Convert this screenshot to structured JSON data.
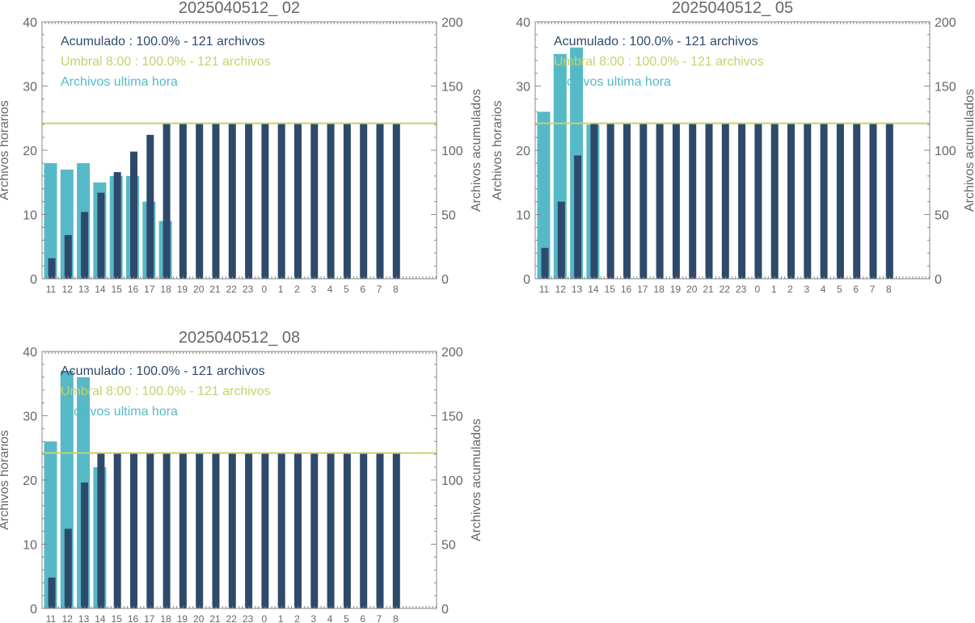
{
  "colors": {
    "accumulated": "#2e4a6b",
    "hourly": "#56b9c7",
    "threshold": "#c8d16a",
    "axis": "#888888",
    "text": "#666666"
  },
  "chart_data": [
    {
      "type": "bar",
      "title": "2025040512_ 02",
      "ylabel": "Archivos horarios",
      "ylabel_right": "Archivos acumulados",
      "ylim": [
        0,
        40
      ],
      "ylim_right": [
        0,
        200
      ],
      "yticks": [
        "0",
        "10",
        "20",
        "30",
        "40"
      ],
      "yticks_right": [
        "0",
        "50",
        "100",
        "150",
        "200"
      ],
      "categories": [
        "11",
        "12",
        "13",
        "14",
        "15",
        "16",
        "17",
        "18",
        "19",
        "20",
        "21",
        "22",
        "23",
        "0",
        "1",
        "2",
        "3",
        "4",
        "5",
        "6",
        "7",
        "8"
      ],
      "threshold": 121,
      "legend": [
        "Acumulado : 100.0% - 121 archivos",
        "Umbral 8:00 : 100.0% - 121 archivos",
        "Archivos ultima hora"
      ],
      "series": [
        {
          "name": "Archivos ultima hora",
          "axis": "left",
          "values": [
            18,
            17,
            18,
            15,
            16,
            16,
            12,
            9,
            null,
            null,
            null,
            null,
            null,
            null,
            null,
            null,
            null,
            null,
            null,
            null,
            null,
            null
          ]
        },
        {
          "name": "Acumulado",
          "axis": "right",
          "values": [
            16,
            34,
            52,
            67,
            83,
            99,
            112,
            121,
            121,
            121,
            121,
            121,
            121,
            121,
            121,
            121,
            121,
            121,
            121,
            121,
            121,
            121
          ]
        }
      ]
    },
    {
      "type": "bar",
      "title": "2025040512_ 05",
      "ylabel": "Archivos horarios",
      "ylabel_right": "Archivos acumulados",
      "ylim": [
        0,
        40
      ],
      "ylim_right": [
        0,
        200
      ],
      "yticks": [
        "0",
        "10",
        "20",
        "30",
        "40"
      ],
      "yticks_right": [
        "0",
        "50",
        "100",
        "150",
        "200"
      ],
      "categories": [
        "11",
        "12",
        "13",
        "14",
        "15",
        "16",
        "17",
        "18",
        "19",
        "20",
        "21",
        "22",
        "23",
        "0",
        "1",
        "2",
        "3",
        "4",
        "5",
        "6",
        "7",
        "8"
      ],
      "threshold": 121,
      "legend": [
        "Acumulado : 100.0% - 121 archivos",
        "Umbral 8:00 : 100.0% - 121 archivos",
        "Archivos ultima hora"
      ],
      "series": [
        {
          "name": "Archivos ultima hora",
          "axis": "left",
          "values": [
            26,
            35,
            36,
            24,
            null,
            null,
            null,
            null,
            null,
            null,
            null,
            null,
            null,
            null,
            null,
            null,
            null,
            null,
            null,
            null,
            null,
            null
          ]
        },
        {
          "name": "Acumulado",
          "axis": "right",
          "values": [
            24,
            60,
            96,
            121,
            121,
            121,
            121,
            121,
            121,
            121,
            121,
            121,
            121,
            121,
            121,
            121,
            121,
            121,
            121,
            121,
            121,
            121
          ]
        }
      ]
    },
    {
      "type": "bar",
      "title": "2025040512_ 08",
      "ylabel": "Archivos horarios",
      "ylabel_right": "Archivos acumulados",
      "ylim": [
        0,
        40
      ],
      "ylim_right": [
        0,
        200
      ],
      "yticks": [
        "0",
        "10",
        "20",
        "30",
        "40"
      ],
      "yticks_right": [
        "0",
        "50",
        "100",
        "150",
        "200"
      ],
      "categories": [
        "11",
        "12",
        "13",
        "14",
        "15",
        "16",
        "17",
        "18",
        "19",
        "20",
        "21",
        "22",
        "23",
        "0",
        "1",
        "2",
        "3",
        "4",
        "5",
        "6",
        "7",
        "8"
      ],
      "threshold": 121,
      "legend": [
        "Acumulado : 100.0% - 121 archivos",
        "Umbral 8:00 : 100.0% - 121 archivos",
        "Archivos ultima hora"
      ],
      "series": [
        {
          "name": "Archivos ultima hora",
          "axis": "left",
          "values": [
            26,
            37,
            36,
            22,
            null,
            null,
            null,
            null,
            null,
            null,
            null,
            null,
            null,
            null,
            null,
            null,
            null,
            null,
            null,
            null,
            null,
            null
          ]
        },
        {
          "name": "Acumulado",
          "axis": "right",
          "values": [
            24,
            62,
            98,
            121,
            121,
            121,
            121,
            121,
            121,
            121,
            121,
            121,
            121,
            121,
            121,
            121,
            121,
            121,
            121,
            121,
            121,
            121
          ]
        }
      ]
    }
  ]
}
